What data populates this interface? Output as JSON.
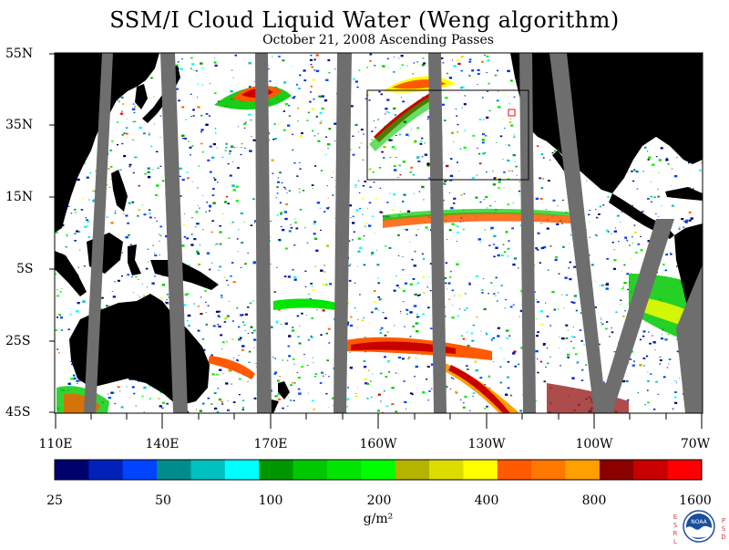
{
  "title": "SSM/I Cloud Liquid Water (Weng algorithm)",
  "subtitle": "October 21, 2008  Ascending Passes",
  "latitude_labels": [
    "55N",
    "35N",
    "15N",
    "5S",
    "25S",
    "45S"
  ],
  "longitude_labels": [
    "110E",
    "140E",
    "170E",
    "160W",
    "130W",
    "100W",
    "70W"
  ],
  "colorbar": {
    "labels": [
      "25",
      "50",
      "100",
      "200",
      "400",
      "800",
      "1600"
    ],
    "unit": "g/m²",
    "colors": [
      "#00006e",
      "#0022b8",
      "#0044ff",
      "#008c8c",
      "#00c0c0",
      "#00ffff",
      "#009600",
      "#00c800",
      "#00e600",
      "#00ff00",
      "#b4b400",
      "#dcdc00",
      "#ffff00",
      "#ff5a00",
      "#ff7800",
      "#ffa000",
      "#8c0000",
      "#c80000",
      "#ff0000"
    ]
  },
  "map": {
    "land_color": "#000000",
    "no_data_color": "#6e6e6e",
    "ocean_color": "#ffffff",
    "box_color": "#000000"
  },
  "logo": {
    "name": "noaa-logo",
    "left_letters": [
      "E",
      "S",
      "R",
      "L"
    ],
    "right_letters": [
      "P",
      "S",
      "D"
    ],
    "center_text": "NOAA"
  }
}
